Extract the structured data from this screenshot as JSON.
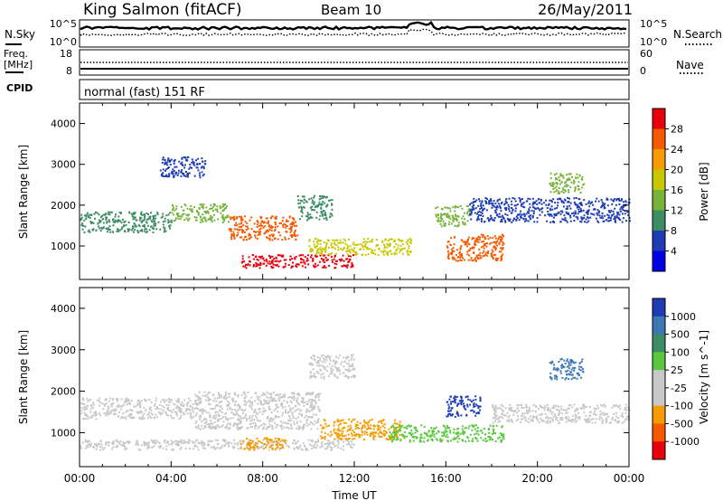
{
  "header": {
    "station": "King Salmon (fitACF)",
    "beam": "Beam 10",
    "date": "26/May/2011"
  },
  "top_panels": {
    "nsky_label": "N.Sky",
    "nsky_ticks": [
      "10^5",
      "10^0"
    ],
    "nsearch_label": "N.Search",
    "nsearch_ticks": [
      "10^5",
      "10^0"
    ],
    "freq_label_1": "Freq.",
    "freq_label_2": "[MHz]",
    "freq_ticks": [
      "18",
      "8"
    ],
    "nave_label": "Nave",
    "nave_ticks": [
      "60",
      "0"
    ],
    "cpid_label": "CPID",
    "cpid_text": "normal (fast) 151 RF"
  },
  "chart_data": [
    {
      "type": "heatmap",
      "panel": "power",
      "ylabel": "Slant Range [km]",
      "xlabel": "Time UT",
      "ylim": [
        180,
        4500
      ],
      "yticks": [
        1000,
        2000,
        3000,
        4000
      ],
      "xlim_hours": [
        0,
        24
      ],
      "xticks": [
        "00:00",
        "04:00",
        "08:00",
        "12:00",
        "16:00",
        "20:00",
        "00:00"
      ],
      "colorbar": {
        "label": "Power [dB]",
        "ticks": [
          "28",
          "24",
          "20",
          "16",
          "12",
          "8",
          "4"
        ],
        "colors": [
          "#e8000c",
          "#f55a00",
          "#f59c00",
          "#c8c800",
          "#78b43c",
          "#3c8c64",
          "#1e3cb4",
          "#0000e6"
        ]
      },
      "bands": [
        {
          "t0": 0.0,
          "t1": 4.0,
          "r0": 1350,
          "r1": 1850,
          "level": 3,
          "color": "#3c8c64"
        },
        {
          "t0": 4.0,
          "t1": 6.5,
          "r0": 1600,
          "r1": 2050,
          "level": 4,
          "color": "#78b43c"
        },
        {
          "t0": 6.5,
          "t1": 9.5,
          "r0": 1150,
          "r1": 1750,
          "level": 6,
          "color": "#f55a00"
        },
        {
          "t0": 9.5,
          "t1": 11.0,
          "r0": 1650,
          "r1": 2250,
          "level": 3,
          "color": "#3c8c64"
        },
        {
          "t0": 7.0,
          "t1": 12.0,
          "r0": 480,
          "r1": 800,
          "level": 7,
          "color": "#e8000c"
        },
        {
          "t0": 10.0,
          "t1": 14.5,
          "r0": 800,
          "r1": 1200,
          "level": 5,
          "color": "#c8c800"
        },
        {
          "t0": 16.0,
          "t1": 18.5,
          "r0": 650,
          "r1": 1300,
          "level": 6,
          "color": "#f55a00"
        },
        {
          "t0": 15.5,
          "t1": 17.0,
          "r0": 1500,
          "r1": 2000,
          "level": 4,
          "color": "#78b43c"
        },
        {
          "t0": 3.5,
          "t1": 5.5,
          "r0": 2700,
          "r1": 3200,
          "level": 1,
          "color": "#1e3cb4"
        },
        {
          "t0": 17.0,
          "t1": 24.0,
          "r0": 1600,
          "r1": 2200,
          "level": 1,
          "color": "#1e3cb4"
        },
        {
          "t0": 20.5,
          "t1": 22.0,
          "r0": 2300,
          "r1": 2800,
          "level": 4,
          "color": "#78b43c"
        }
      ]
    },
    {
      "type": "heatmap",
      "panel": "velocity",
      "ylabel": "Slant Range [km]",
      "xlabel": "Time UT",
      "ylim": [
        180,
        4500
      ],
      "yticks": [
        1000,
        2000,
        3000,
        4000
      ],
      "xlim_hours": [
        0,
        24
      ],
      "xticks": [
        "00:00",
        "04:00",
        "08:00",
        "12:00",
        "16:00",
        "20:00",
        "00:00"
      ],
      "colorbar": {
        "label": "Velocity [m s^-1]",
        "ticks": [
          "1000",
          "500",
          "100",
          "25",
          "-25",
          "-100",
          "-500",
          "-1000"
        ],
        "colors": [
          "#1e3cb4",
          "#3c78b4",
          "#3c8c64",
          "#5ac83c",
          "#c8c8c8",
          "#c8c8c8",
          "#f59c00",
          "#f55a00",
          "#e8000c"
        ]
      },
      "bands": [
        {
          "t0": 0.0,
          "t1": 5.0,
          "r0": 1350,
          "r1": 1850,
          "color": "#c8c8c8"
        },
        {
          "t0": 5.0,
          "t1": 10.5,
          "r0": 1100,
          "r1": 2000,
          "color": "#c8c8c8"
        },
        {
          "t0": 0.0,
          "t1": 12.0,
          "r0": 600,
          "r1": 850,
          "color": "#c8c8c8"
        },
        {
          "t0": 7.0,
          "t1": 9.0,
          "r0": 600,
          "r1": 900,
          "color": "#f59c00"
        },
        {
          "t0": 10.5,
          "t1": 14.0,
          "r0": 850,
          "r1": 1350,
          "color": "#f59c00"
        },
        {
          "t0": 13.5,
          "t1": 18.5,
          "r0": 800,
          "r1": 1200,
          "color": "#5ac83c"
        },
        {
          "t0": 16.0,
          "t1": 17.5,
          "r0": 1400,
          "r1": 1900,
          "color": "#1e3cb4"
        },
        {
          "t0": 18.0,
          "t1": 24.0,
          "r0": 1250,
          "r1": 1700,
          "color": "#c8c8c8"
        },
        {
          "t0": 20.5,
          "t1": 22.0,
          "r0": 2300,
          "r1": 2800,
          "color": "#3c78b4"
        },
        {
          "t0": 10.0,
          "t1": 12.0,
          "r0": 2300,
          "r1": 2900,
          "color": "#c8c8c8"
        }
      ]
    }
  ]
}
